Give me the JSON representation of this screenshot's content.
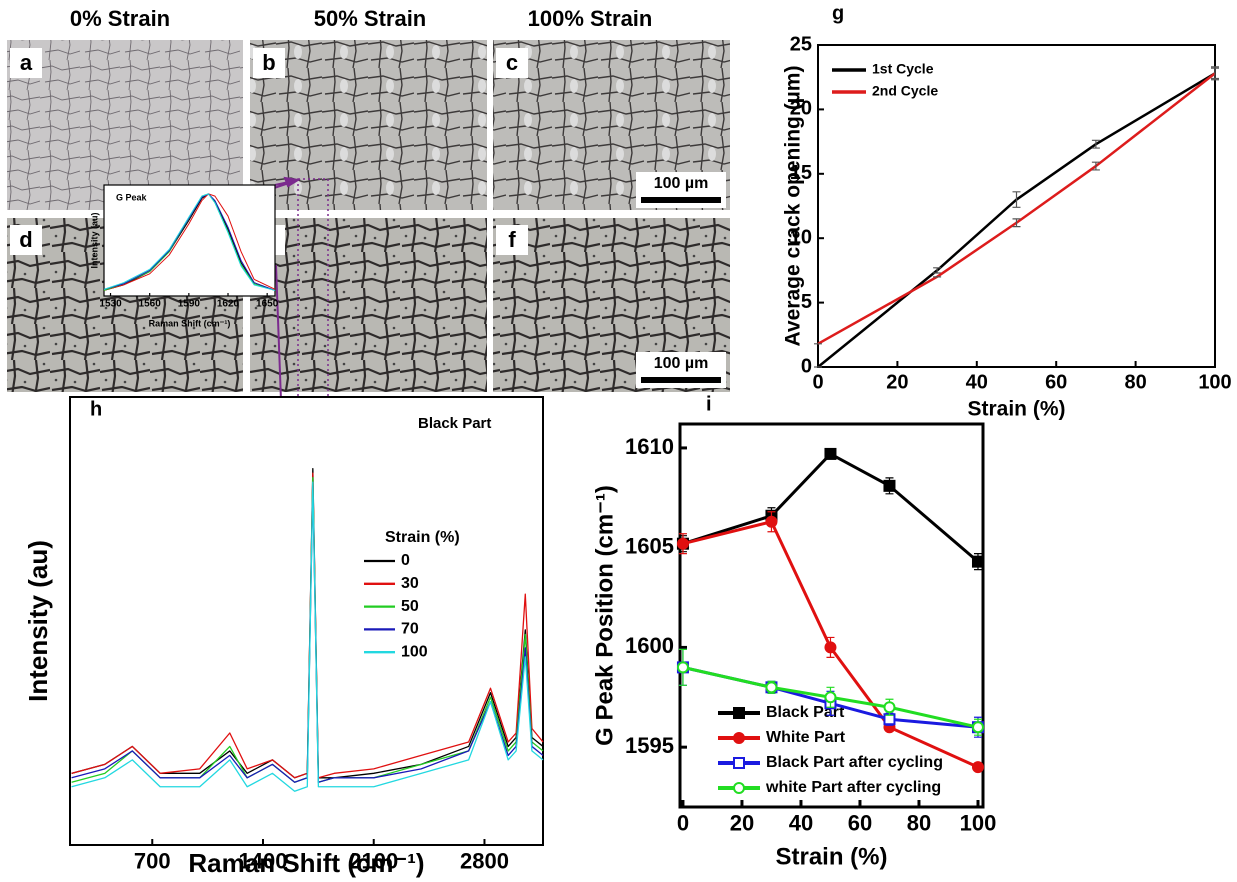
{
  "panels": {
    "headers": [
      "0% Strain",
      "50% Strain",
      "100% Strain"
    ],
    "letters": [
      "a",
      "b",
      "c",
      "d",
      "e",
      "f"
    ],
    "scale_bars": [
      "100 µm",
      "100 µm"
    ]
  },
  "chart_data": [
    {
      "type": "line",
      "panel": "g",
      "xlabel": "Strain (%)",
      "ylabel": "Average crack opening (µm)",
      "x": [
        0,
        30,
        50,
        70,
        100
      ],
      "series": [
        {
          "name": "1st Cycle",
          "color": "#000000",
          "values": [
            0,
            7.5,
            13,
            17.3,
            22.8
          ],
          "errors": [
            0,
            0.2,
            0.6,
            0.3,
            0.5
          ]
        },
        {
          "name": "2nd Cycle",
          "color": "#dd1c1c",
          "values": [
            1.8,
            7,
            11.2,
            15.6,
            22.8
          ],
          "errors": [
            0,
            0,
            0.3,
            0.3,
            0.4
          ]
        }
      ],
      "xlim": [
        0,
        100
      ],
      "ylim": [
        0,
        25
      ],
      "xticks": [
        0,
        20,
        40,
        60,
        80,
        100
      ],
      "yticks": [
        0,
        5,
        10,
        15,
        20,
        25
      ],
      "legend": "upper left"
    },
    {
      "type": "line",
      "panel": "h",
      "xlabel": "Raman Shift (cm⁻¹)",
      "ylabel": "Intensity (au)",
      "annotation": "Black Part",
      "legend_title": "Strain (%)",
      "x": [
        190,
        400,
        574,
        750,
        1000,
        1190,
        1300,
        1460,
        1600,
        1680,
        1715,
        1750,
        1850,
        2100,
        2400,
        2700,
        2838,
        2950,
        3000,
        3058,
        3100,
        3170
      ],
      "series": [
        {
          "name": "0",
          "color": "#000000",
          "values": [
            16,
            18,
            22,
            16,
            16,
            21,
            16,
            19,
            15,
            16,
            84,
            15,
            15,
            16,
            18,
            22,
            34,
            22,
            24,
            48,
            24,
            22
          ]
        },
        {
          "name": "30",
          "color": "#e01010",
          "values": [
            16,
            18,
            22,
            16,
            17,
            25,
            17,
            19,
            15,
            16,
            83,
            15,
            16,
            17,
            20,
            23,
            35,
            23,
            25,
            56,
            26,
            23
          ]
        },
        {
          "name": "50",
          "color": "#22cc22",
          "values": [
            14,
            16,
            21,
            15,
            15,
            22,
            15,
            18,
            14,
            15,
            82,
            14,
            15,
            15,
            18,
            21,
            33,
            21,
            23,
            47,
            23,
            21
          ]
        },
        {
          "name": "70",
          "color": "#1a1ab8",
          "values": [
            15,
            17,
            21,
            15,
            15,
            20,
            15,
            18,
            14,
            15,
            80,
            14,
            15,
            15,
            17,
            21,
            32,
            20,
            22,
            44,
            22,
            20
          ]
        },
        {
          "name": "100",
          "color": "#22d8e0",
          "values": [
            13,
            15,
            19,
            13,
            13,
            19,
            13,
            16,
            12,
            13,
            81,
            13,
            13,
            13,
            16,
            19,
            32,
            19,
            21,
            42,
            21,
            19
          ]
        }
      ],
      "xlim": [
        180,
        3170
      ],
      "ylim": [
        0,
        100
      ],
      "xticks": [
        700,
        1400,
        2100,
        2800
      ],
      "legend": "center right"
    },
    {
      "type": "line",
      "title": "G Peak",
      "xlabel": "Raman Shift (cm⁻¹)",
      "ylabel": "Intensity (au)",
      "x": [
        1525,
        1540,
        1560,
        1575,
        1590,
        1600,
        1605,
        1610,
        1620,
        1630,
        1640,
        1656
      ],
      "series": [
        {
          "color": "#000000",
          "values": [
            0.05,
            0.1,
            0.22,
            0.4,
            0.68,
            0.88,
            0.92,
            0.85,
            0.6,
            0.3,
            0.12,
            0.05
          ]
        },
        {
          "color": "#e01010",
          "values": [
            0.05,
            0.1,
            0.2,
            0.37,
            0.65,
            0.86,
            0.92,
            0.9,
            0.72,
            0.4,
            0.15,
            0.06
          ]
        },
        {
          "color": "#22cc22",
          "values": [
            0.05,
            0.11,
            0.22,
            0.4,
            0.7,
            0.9,
            0.92,
            0.84,
            0.58,
            0.28,
            0.11,
            0.05
          ]
        },
        {
          "color": "#1a1ab8",
          "values": [
            0.06,
            0.11,
            0.23,
            0.41,
            0.7,
            0.89,
            0.92,
            0.86,
            0.62,
            0.32,
            0.12,
            0.05
          ]
        },
        {
          "color": "#22d8e0",
          "values": [
            0.06,
            0.12,
            0.24,
            0.42,
            0.71,
            0.9,
            0.92,
            0.84,
            0.57,
            0.27,
            0.1,
            0.05
          ]
        }
      ],
      "xlim": [
        1525,
        1656
      ],
      "ylim": [
        0,
        1
      ],
      "xticks": [
        1530,
        1560,
        1590,
        1620,
        1650
      ]
    },
    {
      "type": "line",
      "panel": "i",
      "xlabel": "Strain (%)",
      "ylabel": "G Peak Position (cm⁻¹)",
      "x": [
        0,
        30,
        50,
        70,
        100
      ],
      "series": [
        {
          "name": "Black Part",
          "color": "#000000",
          "marker": "square",
          "filled": true,
          "values": [
            1605.2,
            1606.6,
            1609.7,
            1608.1,
            1604.3
          ],
          "errors": [
            0.4,
            0.4,
            0.2,
            0.4,
            0.4
          ]
        },
        {
          "name": "White Part",
          "color": "#e01010",
          "marker": "circle",
          "filled": true,
          "values": [
            1605.2,
            1606.3,
            1600,
            1596,
            1594
          ],
          "errors": [
            0.5,
            0.5,
            0.5,
            0.2,
            0.1
          ]
        },
        {
          "name": "Black Part after cycling",
          "color": "#1a1ae0",
          "marker": "square",
          "filled": false,
          "values": [
            1599,
            1598,
            1597.2,
            1596.4,
            1596
          ],
          "errors": [
            0.9,
            0.3,
            0.6,
            0.3,
            0.5
          ]
        },
        {
          "name": "white Part after cycling",
          "color": "#22dd22",
          "marker": "circle",
          "filled": false,
          "values": [
            1599,
            1598,
            1597.5,
            1597,
            1596
          ],
          "errors": [
            0.9,
            0.3,
            0.5,
            0.4,
            0.4
          ]
        }
      ],
      "xlim": [
        -1,
        101.7
      ],
      "ylim": [
        1592,
        1611.2
      ],
      "xticks": [
        0,
        20,
        40,
        60,
        80,
        100
      ],
      "yticks": [
        1595,
        1600,
        1605,
        1610
      ],
      "legend": "lower left"
    }
  ]
}
